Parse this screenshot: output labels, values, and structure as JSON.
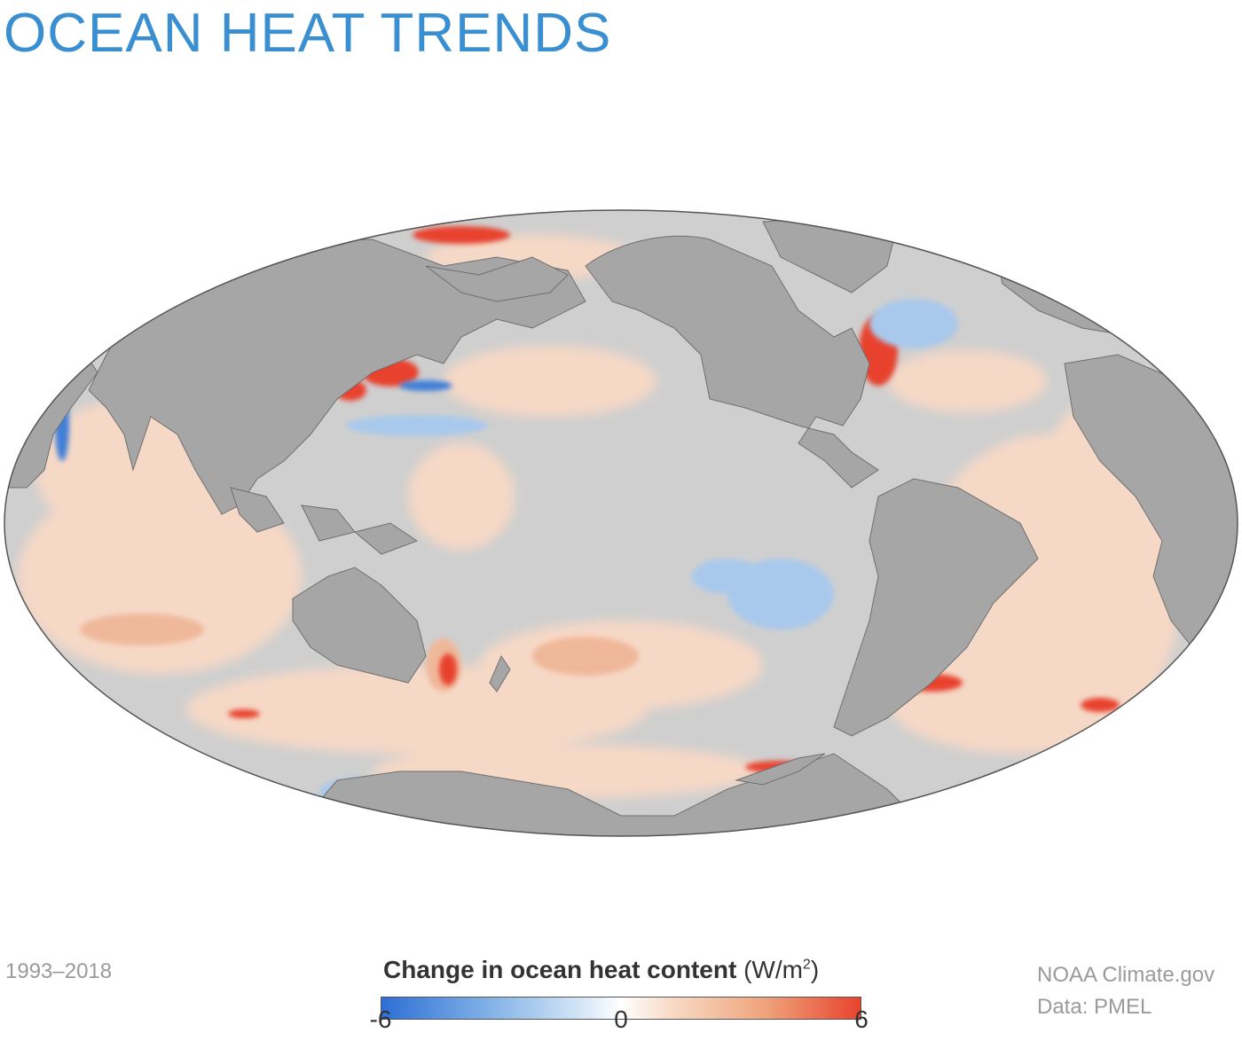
{
  "title": "OCEAN HEAT TRENDS",
  "date_range": "1993–2018",
  "legend": {
    "title": "Change in ocean heat content",
    "unit_open": "(W/m",
    "unit_sup": "2",
    "unit_close": ")",
    "min_label": "-6",
    "mid_label": "0",
    "max_label": "6",
    "scale": {
      "min": -6,
      "mid": 0,
      "max": 6
    },
    "colors": {
      "cool": "#2e6fd6",
      "neutral": "#ffffff",
      "warm": "#e8432d"
    }
  },
  "credit": {
    "line1": "NOAA Climate.gov",
    "line2": "Data: PMEL"
  },
  "map": {
    "projection": "global-ellipse",
    "colors": {
      "land": "#a6a6a6",
      "ocean": "#cfcfcf",
      "outline": "#555555"
    }
  }
}
